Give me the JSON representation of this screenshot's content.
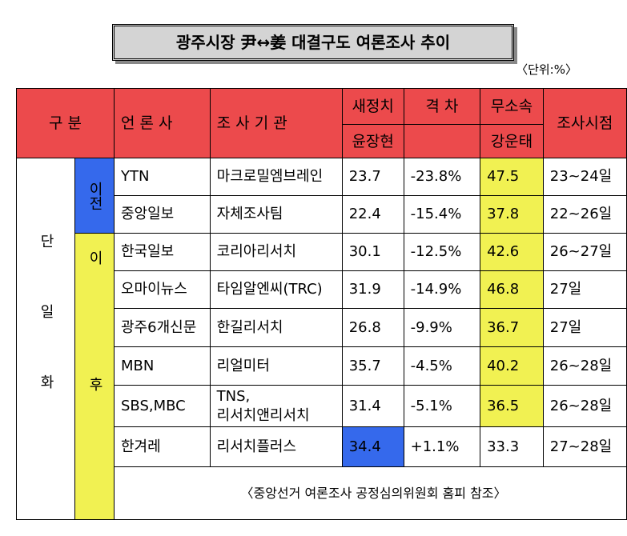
{
  "header": {
    "title": "광주시장 尹↔姜 대결구도 여론조사 추이",
    "unit": "〈단위:%〉"
  },
  "table": {
    "headers": {
      "group": "구 분",
      "media": "언 론 사",
      "agency": "조 사 기 관",
      "party1": "새정치",
      "gap": "격 차",
      "party2": "무소속",
      "date": "조사시점",
      "candidate1": "윤장현",
      "candidate2": "강운태"
    },
    "group_label": "단일화",
    "before_label": "이전",
    "after_label": "이후",
    "rows": [
      [
        "YTN",
        "마크로밀엠브레인",
        "23.7",
        "-23.8%",
        "47.5",
        "23~24일"
      ],
      [
        "중앙일보",
        "자체조사팀",
        "22.4",
        "-15.4%",
        "37.8",
        "22~26일"
      ],
      [
        "한국일보",
        "코리아리서치",
        "30.1",
        "-12.5%",
        "42.6",
        "26~27일"
      ],
      [
        "오마이뉴스",
        "타임알엔씨(TRC)",
        "31.9",
        "-14.9%",
        "46.8",
        "27일"
      ],
      [
        "광주6개신문",
        "한길리서치",
        "26.8",
        "-9.9%",
        "36.7",
        "27일"
      ],
      [
        "MBN",
        "리얼미터",
        "35.7",
        "-4.5%",
        "40.2",
        "26~28일"
      ],
      [
        "SBS,MBC",
        "TNS,\n리서치앤리서치",
        "31.4",
        "-5.1%",
        "36.5",
        "26~28일"
      ],
      [
        "한겨레",
        "리서치플러스",
        "34.4",
        "+1.1%",
        "33.3",
        "27~28일"
      ]
    ],
    "footnote": "〈중앙선거 여론조사 공정심의위원회 홈피 참조〉"
  }
}
